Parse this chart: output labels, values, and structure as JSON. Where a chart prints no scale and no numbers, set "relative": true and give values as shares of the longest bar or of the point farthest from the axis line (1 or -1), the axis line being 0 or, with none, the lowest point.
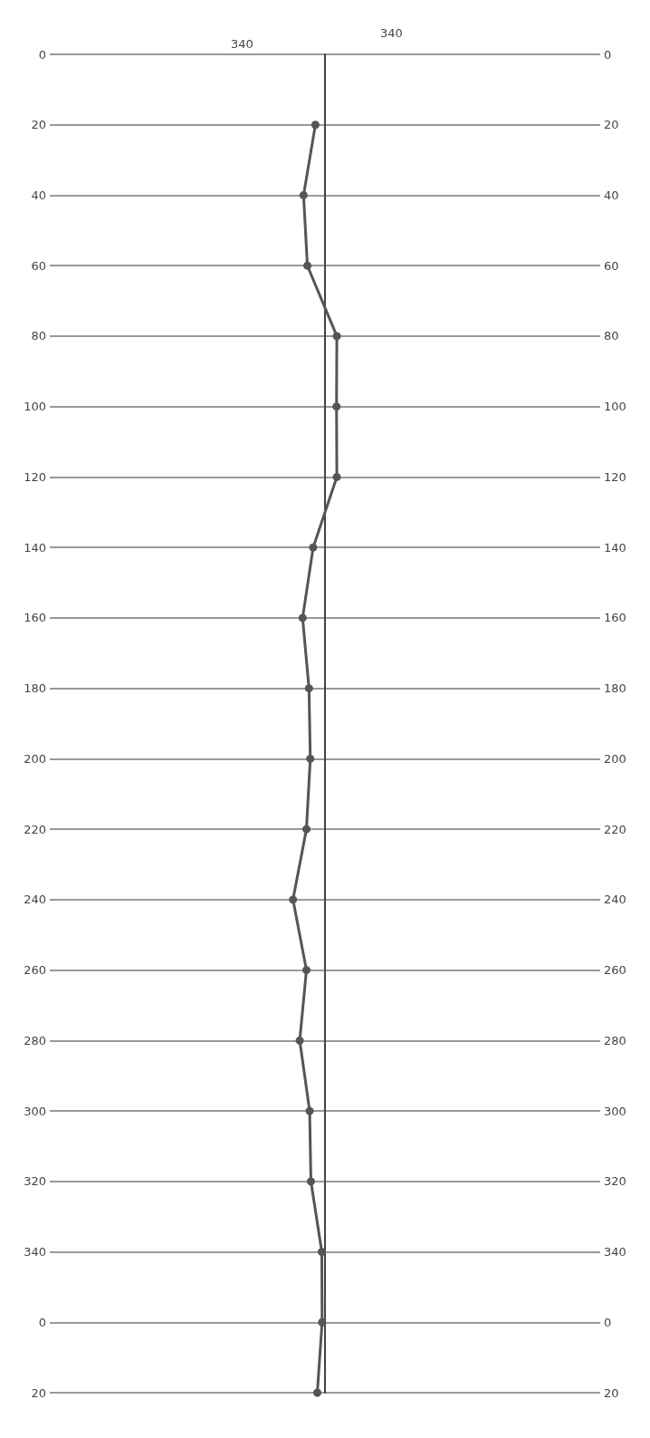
{
  "chart_data": {
    "type": "line",
    "relative": true,
    "orientation": "horizontal",
    "categories": [
      "0",
      "20",
      "40",
      "60",
      "80",
      "100",
      "120",
      "140",
      "160",
      "180",
      "200",
      "220",
      "240",
      "260",
      "280",
      "300",
      "320",
      "340",
      "0",
      "20"
    ],
    "series": [
      {
        "color": "#555555",
        "values": [
          null,
          -0.3,
          -0.67,
          -0.55,
          0.37,
          0.36,
          0.37,
          -0.37,
          -0.7,
          -0.5,
          -0.46,
          -0.58,
          -1,
          -0.58,
          -0.79,
          -0.48,
          -0.44,
          -0.1,
          -0.09,
          -0.24
        ]
      }
    ],
    "annotations": [
      "340",
      "340"
    ],
    "grid": "y",
    "marker": "circle",
    "line_style": "solid"
  }
}
